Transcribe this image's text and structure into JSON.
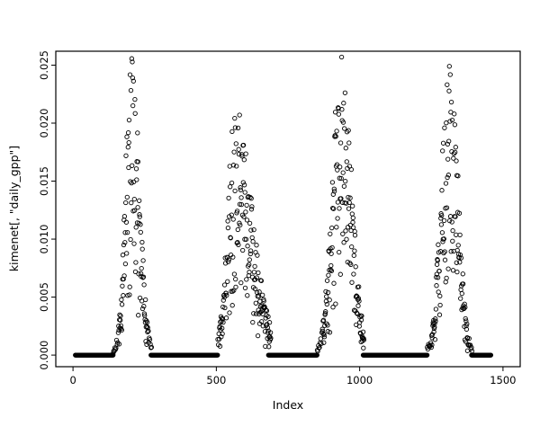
{
  "figure": {
    "background": "#ffffff",
    "frame_color": "#000000"
  },
  "chart_data": {
    "type": "scatter",
    "title": "",
    "xlabel": "Index",
    "ylabel": "kimenet[, \"daily_gpp\"]",
    "xlim": [
      -60,
      1560
    ],
    "ylim": [
      -0.001,
      0.0262
    ],
    "x_ticks": [
      0,
      500,
      1000,
      1500
    ],
    "x_tick_labels": [
      "0",
      "500",
      "1000",
      "1500"
    ],
    "y_ticks": [
      0,
      0.005,
      0.01,
      0.015,
      0.02,
      0.025
    ],
    "y_tick_labels": [
      "0.000",
      "0.005",
      "0.010",
      "0.015",
      "0.020",
      "0.025"
    ],
    "grid": false,
    "legend": "none",
    "marker": {
      "shape": "open-circle",
      "radius": 2.2,
      "color": "#000000",
      "stroke_width": 0.9
    },
    "zero_runs": [
      [
        8,
        140
      ],
      [
        272,
        505
      ],
      [
        682,
        852
      ],
      [
        1012,
        1236
      ],
      [
        1390,
        1458
      ]
    ],
    "clusters": [
      {
        "start": 140,
        "end": 275,
        "peak_x": 205,
        "peak_y": 0.0255,
        "sigma_left": 22,
        "sigma_right": 26
      },
      {
        "start": 505,
        "end": 690,
        "peak_x": 565,
        "peak_y": 0.0205,
        "sigma_left": 26,
        "sigma_right": 60
      },
      {
        "start": 852,
        "end": 1015,
        "peak_x": 935,
        "peak_y": 0.0255,
        "sigma_left": 30,
        "sigma_right": 36
      },
      {
        "start": 1236,
        "end": 1392,
        "peak_x": 1315,
        "peak_y": 0.0245,
        "sigma_left": 30,
        "sigma_right": 28
      }
    ],
    "seed": 2024,
    "step": 2
  }
}
